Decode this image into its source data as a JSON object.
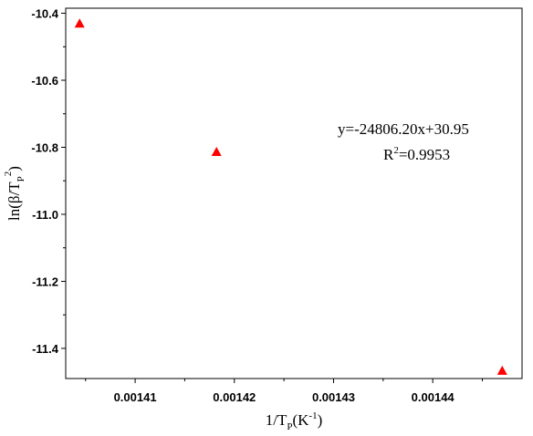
{
  "chart_data": {
    "type": "scatter",
    "xlabel": {
      "base": "1/T",
      "sub": "P",
      "unit_open": "(K",
      "unit_sup": "-1",
      "unit_close": ")"
    },
    "ylabel": {
      "pre": "ln(β/T",
      "sub": "P",
      "sup": "2",
      "post": ")"
    },
    "xlim": [
      0.001403,
      0.001449
    ],
    "ylim": [
      -11.49,
      -10.385
    ],
    "xticks": [
      0.00141,
      0.00142,
      0.00143,
      0.00144
    ],
    "xtick_labels": [
      "0.00141",
      "0.00142",
      "0.00143",
      "0.00144"
    ],
    "yticks": [
      -10.4,
      -10.6,
      -10.8,
      -11.0,
      -11.2,
      -11.4
    ],
    "ytick_labels": [
      "-10.4",
      "-10.6",
      "-10.8",
      "-11.0",
      "-11.2",
      "-11.4"
    ],
    "points": [
      {
        "x": 0.0014044,
        "y": -10.432
      },
      {
        "x": 0.0014182,
        "y": -10.815
      },
      {
        "x": 0.001447,
        "y": -11.468
      }
    ],
    "fit": {
      "slope": -24806.2,
      "intercept": 30.95,
      "x_range": [
        0.0014044,
        0.001447
      ]
    },
    "annotation": {
      "equation": "y=-24806.20x+30.95",
      "r2_base": "R",
      "r2_sup": "2",
      "r2_value": "=0.9953"
    },
    "marker_color": "#ff0000",
    "line_color": "#000000",
    "grid": false,
    "legend": "none"
  }
}
